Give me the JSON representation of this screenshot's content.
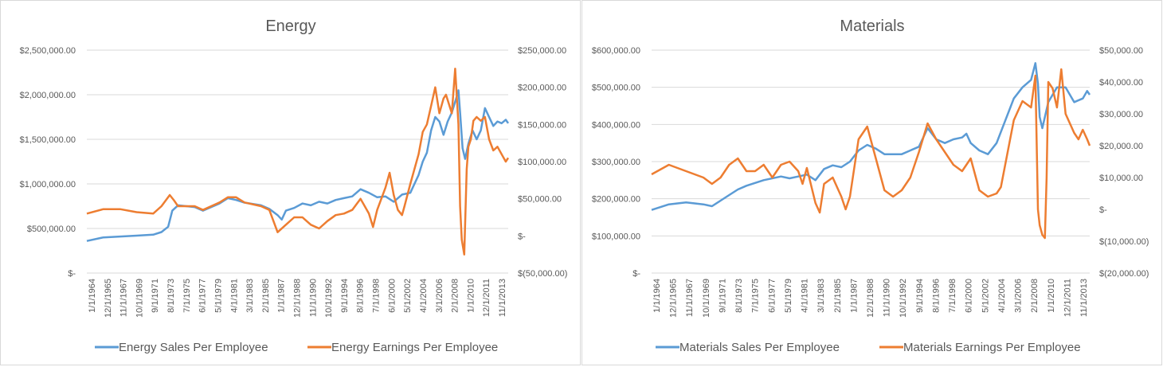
{
  "chart_data": [
    {
      "type": "line",
      "title": "Energy",
      "x_tick_labels": [
        "1/1/1964",
        "12/1/1965",
        "11/1/1967",
        "10/1/1969",
        "9/1/1971",
        "8/1/1973",
        "7/1/1975",
        "6/1/1977",
        "5/1/1979",
        "4/1/1981",
        "3/1/1983",
        "2/1/1985",
        "1/1/1987",
        "12/1/1988",
        "11/1/1990",
        "10/1/1992",
        "9/1/1994",
        "8/1/1996",
        "7/1/1998",
        "6/1/2000",
        "5/1/2002",
        "4/1/2004",
        "3/1/2006",
        "2/1/2008",
        "1/1/2010",
        "12/1/2011",
        "11/1/2013"
      ],
      "x_range": [
        1964.0,
        2014.8
      ],
      "y_left_ticks": [
        "$-",
        "$500,000.00",
        "$1,000,000.00",
        "$1,500,000.00",
        "$2,000,000.00",
        "$2,500,000.00"
      ],
      "y_left_range": [
        0,
        2500000
      ],
      "y_right_ticks": [
        "$(50,000.00)",
        "$-",
        "$50,000.00",
        "$100,000.00",
        "$150,000.00",
        "$200,000.00",
        "$250,000.00"
      ],
      "y_right_range": [
        -50000,
        250000
      ],
      "grid": true,
      "legend": "bottom",
      "trendline": {
        "series": 1,
        "kind": "polynomial",
        "style": "dotted"
      },
      "series": [
        {
          "name": "Energy Sales Per Employee",
          "axis": "left",
          "color": "#5B9BD5",
          "x": [
            1964,
            1966,
            1968,
            1970,
            1972,
            1973,
            1973.8,
            1974.3,
            1975,
            1977,
            1978,
            1980,
            1981,
            1982,
            1983,
            1985,
            1986,
            1987,
            1987.5,
            1988,
            1989,
            1990,
            1991,
            1992,
            1993,
            1994,
            1995,
            1996,
            1997,
            1998,
            1999,
            2000,
            2001,
            2002,
            2003,
            2003.5,
            2004,
            2004.5,
            2005,
            2005.5,
            2006,
            2006.5,
            2007,
            2007.5,
            2008,
            2008.5,
            2008.8,
            2009,
            2009.3,
            2009.6,
            2010,
            2010.5,
            2011,
            2011.5,
            2012,
            2012.5,
            2013,
            2013.5,
            2014,
            2014.5,
            2014.8
          ],
          "y": [
            360000,
            400000,
            410000,
            420000,
            430000,
            460000,
            520000,
            700000,
            760000,
            740000,
            700000,
            780000,
            840000,
            820000,
            790000,
            760000,
            720000,
            650000,
            600000,
            700000,
            730000,
            780000,
            760000,
            800000,
            780000,
            820000,
            840000,
            860000,
            940000,
            900000,
            850000,
            860000,
            800000,
            880000,
            900000,
            1000000,
            1100000,
            1250000,
            1350000,
            1600000,
            1750000,
            1700000,
            1550000,
            1700000,
            1800000,
            1950000,
            2050000,
            1800000,
            1400000,
            1280000,
            1450000,
            1600000,
            1500000,
            1600000,
            1850000,
            1750000,
            1650000,
            1700000,
            1680000,
            1720000,
            1680000
          ]
        },
        {
          "name": "Energy Earnings Per Employee",
          "axis": "right",
          "color": "#ED7D31",
          "x": [
            1964,
            1966,
            1968,
            1970,
            1972,
            1973,
            1974,
            1974.5,
            1975,
            1977,
            1978,
            1980,
            1981,
            1982,
            1983,
            1985,
            1986,
            1986.5,
            1987,
            1988,
            1989,
            1990,
            1991,
            1992,
            1993,
            1994,
            1995,
            1996,
            1997,
            1998,
            1998.5,
            1999,
            2000,
            2000.5,
            2001,
            2001.5,
            2002,
            2002.3,
            2003,
            2004,
            2004.5,
            2005,
            2005.5,
            2006,
            2006.5,
            2007,
            2007.3,
            2008,
            2008.4,
            2008.8,
            2009,
            2009.2,
            2009.5,
            2009.8,
            2010,
            2010.3,
            2010.6,
            2011,
            2011.5,
            2012,
            2012.5,
            2013,
            2013.5,
            2014,
            2014.5,
            2014.8
          ],
          "y": [
            30000,
            36000,
            36000,
            32000,
            30000,
            40000,
            55000,
            48000,
            40000,
            40000,
            35000,
            45000,
            52000,
            52000,
            45000,
            40000,
            35000,
            20000,
            5000,
            15000,
            25000,
            25000,
            15000,
            10000,
            20000,
            28000,
            30000,
            35000,
            50000,
            30000,
            12000,
            35000,
            65000,
            85000,
            55000,
            35000,
            28000,
            40000,
            70000,
            110000,
            140000,
            150000,
            175000,
            200000,
            165000,
            185000,
            190000,
            165000,
            225000,
            150000,
            40000,
            -5000,
            -25000,
            90000,
            120000,
            130000,
            155000,
            160000,
            155000,
            160000,
            130000,
            115000,
            120000,
            110000,
            100000,
            105000
          ]
        }
      ]
    },
    {
      "type": "line",
      "title": "Materials",
      "x_tick_labels": [
        "1/1/1964",
        "12/1/1965",
        "11/1/1967",
        "10/1/1969",
        "9/1/1971",
        "8/1/1973",
        "7/1/1975",
        "6/1/1977",
        "5/1/1979",
        "4/1/1981",
        "3/1/1983",
        "2/1/1985",
        "1/1/1987",
        "12/1/1988",
        "11/1/1990",
        "10/1/1992",
        "9/1/1994",
        "8/1/1996",
        "7/1/1998",
        "6/1/2000",
        "5/1/2002",
        "4/1/2004",
        "3/1/2006",
        "2/1/2008",
        "1/1/2010",
        "12/1/2011",
        "11/1/2013"
      ],
      "x_range": [
        1964.0,
        2014.8
      ],
      "y_left_ticks": [
        "$-",
        "$100,000.00",
        "$200,000.00",
        "$300,000.00",
        "$400,000.00",
        "$500,000.00",
        "$600,000.00"
      ],
      "y_left_range": [
        0,
        600000
      ],
      "y_right_ticks": [
        "$(20,000.00)",
        "$(10,000.00)",
        "$-",
        "$10,000.00",
        "$20,000.00",
        "$30,000.00",
        "$40,000.00",
        "$50,000.00"
      ],
      "y_right_range": [
        -20000,
        50000
      ],
      "grid": true,
      "legend": "bottom",
      "trendline": {
        "series": 1,
        "kind": "polynomial",
        "style": "dotted"
      },
      "series": [
        {
          "name": "Materials Sales Per Employee",
          "axis": "left",
          "color": "#5B9BD5",
          "x": [
            1964,
            1966,
            1968,
            1970,
            1971,
            1972,
            1973,
            1974,
            1975,
            1977,
            1979,
            1980,
            1981,
            1982,
            1983,
            1984,
            1985,
            1986,
            1987,
            1988,
            1989,
            1990,
            1991,
            1992,
            1993,
            1994,
            1995,
            1996,
            1997,
            1998,
            1999,
            2000,
            2000.5,
            2001,
            2002,
            2003,
            2004,
            2005,
            2006,
            2007,
            2008,
            2008.5,
            2008.8,
            2009,
            2009.3,
            2010,
            2011,
            2012,
            2012.5,
            2013,
            2014,
            2014.5,
            2014.8
          ],
          "y": [
            170000,
            185000,
            190000,
            185000,
            180000,
            195000,
            210000,
            225000,
            235000,
            250000,
            260000,
            255000,
            260000,
            265000,
            250000,
            280000,
            290000,
            285000,
            300000,
            330000,
            345000,
            335000,
            320000,
            320000,
            320000,
            330000,
            340000,
            390000,
            360000,
            350000,
            360000,
            365000,
            375000,
            350000,
            330000,
            320000,
            350000,
            410000,
            470000,
            500000,
            520000,
            565000,
            510000,
            420000,
            390000,
            460000,
            500000,
            500000,
            480000,
            460000,
            470000,
            490000,
            480000
          ]
        },
        {
          "name": "Materials Earnings Per Employee",
          "axis": "right",
          "color": "#ED7D31",
          "x": [
            1964,
            1966,
            1968,
            1970,
            1971,
            1972,
            1973,
            1974,
            1975,
            1976,
            1977,
            1978,
            1979,
            1980,
            1981,
            1981.5,
            1982,
            1983,
            1983.5,
            1984,
            1985,
            1986,
            1986.5,
            1987,
            1988,
            1989,
            1990,
            1991,
            1992,
            1993,
            1994,
            1995,
            1996,
            1997,
            1998,
            1999,
            2000,
            2001,
            2002,
            2003,
            2004,
            2004.5,
            2005,
            2006,
            2007,
            2008,
            2008.5,
            2008.8,
            2009,
            2009.3,
            2009.6,
            2009.8,
            2010,
            2010.5,
            2011,
            2011.5,
            2012,
            2013,
            2013.5,
            2014,
            2014.5,
            2014.8
          ],
          "y": [
            11000,
            14000,
            12000,
            10000,
            8000,
            10000,
            14000,
            16000,
            12000,
            12000,
            14000,
            10000,
            14000,
            15000,
            12000,
            8000,
            13000,
            2000,
            -1000,
            8000,
            10000,
            4000,
            0,
            4000,
            22000,
            26000,
            16000,
            6000,
            4000,
            6000,
            10000,
            18000,
            27000,
            22000,
            18000,
            14000,
            12000,
            16000,
            6000,
            4000,
            5000,
            7000,
            14000,
            28000,
            34000,
            32000,
            42000,
            0,
            -5000,
            -8000,
            -9000,
            10000,
            40000,
            38000,
            32000,
            44000,
            30000,
            24000,
            22000,
            25000,
            22000,
            20000
          ]
        }
      ]
    }
  ]
}
